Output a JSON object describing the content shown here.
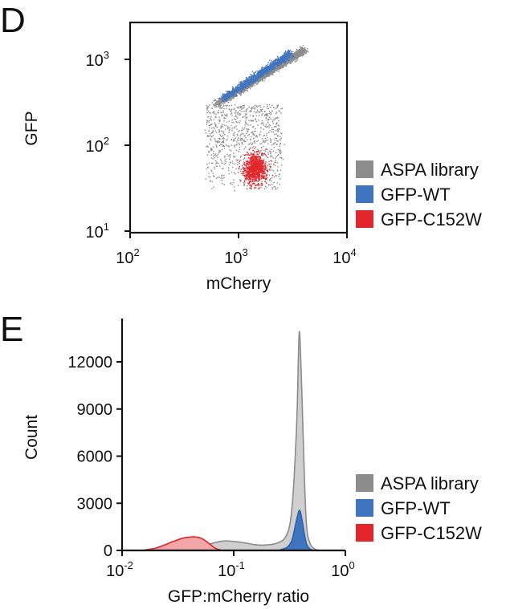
{
  "chart_data": [
    {
      "panel": "D",
      "type": "scatter",
      "xlabel": "mCherry",
      "ylabel": "GFP",
      "xscale": "log",
      "yscale": "log",
      "xlim": [
        100,
        10000
      ],
      "ylim": [
        10,
        1500
      ],
      "x_ticks": [
        {
          "base": "10",
          "exp": "2",
          "value": 100
        },
        {
          "base": "10",
          "exp": "3",
          "value": 1000
        },
        {
          "base": "10",
          "exp": "4",
          "value": 10000
        }
      ],
      "y_ticks": [
        {
          "base": "10",
          "exp": "1",
          "value": 10
        },
        {
          "base": "10",
          "exp": "2",
          "value": 100
        },
        {
          "base": "10",
          "exp": "3",
          "value": 1000
        }
      ],
      "legend_position": "right",
      "series": [
        {
          "name": "ASPA library",
          "color": "#8c8c8c",
          "populations": [
            {
              "x_range": [
                600,
                4000
              ],
              "y_range": [
                300,
                1300
              ],
              "trend": "diagonal",
              "n": 2500
            },
            {
              "x_range": [
                500,
                2500
              ],
              "y_range": [
                30,
                300
              ],
              "trend": "spread",
              "n": 900
            }
          ]
        },
        {
          "name": "GFP-WT",
          "color": "#3f74c0",
          "populations": [
            {
              "x_range": [
                700,
                3000
              ],
              "y_range": [
                350,
                1200
              ],
              "trend": "diagonal",
              "n": 1200
            }
          ]
        },
        {
          "name": "GFP-C152W",
          "color": "#e3262b",
          "populations": [
            {
              "x_range": [
                800,
                2500
              ],
              "y_range": [
                25,
                120
              ],
              "trend": "cluster",
              "n": 900
            }
          ]
        }
      ]
    },
    {
      "panel": "E",
      "type": "area",
      "xlabel": "GFP:mCherry ratio",
      "ylabel": "Count",
      "xscale": "log",
      "xlim": [
        0.01,
        1
      ],
      "ylim": [
        0,
        14000
      ],
      "x_ticks": [
        {
          "base": "10",
          "exp": "-2",
          "value": 0.01
        },
        {
          "base": "10",
          "exp": "-1",
          "value": 0.1
        },
        {
          "base": "10",
          "exp": "0",
          "value": 1
        }
      ],
      "y_ticks": [
        {
          "label": "0",
          "value": 0
        },
        {
          "label": "3000",
          "value": 3000
        },
        {
          "label": "6000",
          "value": 6000
        },
        {
          "label": "9000",
          "value": 9000
        },
        {
          "label": "12000",
          "value": 12000
        }
      ],
      "legend_position": "right",
      "series": [
        {
          "name": "ASPA library",
          "fill": "#cfcfcf",
          "stroke": "#8c8c8c",
          "x": [
            0.01,
            0.03,
            0.05,
            0.08,
            0.12,
            0.16,
            0.2,
            0.24,
            0.28,
            0.31,
            0.33,
            0.35,
            0.37,
            0.38,
            0.39,
            0.41,
            0.43,
            0.45,
            0.48,
            0.52,
            0.6,
            1
          ],
          "y": [
            0,
            30,
            250,
            600,
            500,
            350,
            350,
            450,
            700,
            1300,
            2500,
            5000,
            9000,
            12500,
            13800,
            9500,
            4500,
            1500,
            500,
            150,
            0,
            0
          ]
        },
        {
          "name": "GFP-WT",
          "fill": "#3f74c0",
          "stroke": "#2f5fa6",
          "x": [
            0.25,
            0.3,
            0.33,
            0.35,
            0.37,
            0.39,
            0.41,
            0.43,
            0.45,
            0.48,
            0.52
          ],
          "y": [
            0,
            200,
            600,
            1300,
            2100,
            2550,
            1900,
            1000,
            400,
            100,
            0
          ]
        },
        {
          "name": "GFP-C152W",
          "fill": "#f4a5a8",
          "stroke": "#e3262b",
          "x": [
            0.015,
            0.02,
            0.025,
            0.03,
            0.035,
            0.04,
            0.045,
            0.05,
            0.055,
            0.06,
            0.065,
            0.07,
            0.08
          ],
          "y": [
            0,
            150,
            400,
            620,
            780,
            850,
            860,
            800,
            650,
            450,
            250,
            100,
            0
          ]
        }
      ]
    }
  ],
  "panels": {
    "D": {
      "letter": "D"
    },
    "E": {
      "letter": "E"
    }
  }
}
